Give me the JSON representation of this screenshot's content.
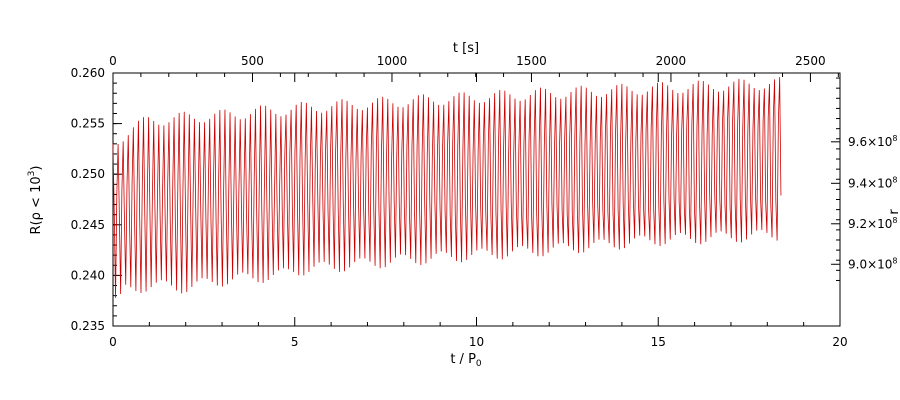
{
  "chart_data": {
    "type": "line",
    "title": "",
    "bottom_axis": {
      "label_main": "t / P",
      "label_sub": "0",
      "range": [
        0,
        20
      ],
      "ticks": [
        "0",
        "5",
        "10",
        "15",
        "20"
      ],
      "minor_step": 1
    },
    "top_axis": {
      "label": "t [s]",
      "range": [
        0,
        2606
      ],
      "ticks": [
        "0",
        "500",
        "1000",
        "1500",
        "2000",
        "2500"
      ],
      "tick_values": [
        0,
        500,
        1000,
        1500,
        2000,
        2500
      ],
      "minor_step": 100
    },
    "left_axis": {
      "label_prefix": "R(ρ < 10",
      "label_sup": "3",
      "label_suffix": ")",
      "range": [
        0.235,
        0.26
      ],
      "ticks": [
        "0.235",
        "0.240",
        "0.245",
        "0.250",
        "0.255",
        "0.260"
      ],
      "tick_values": [
        0.235,
        0.24,
        0.245,
        0.25,
        0.255,
        0.26
      ],
      "minor_step": 0.001
    },
    "right_axis": {
      "range_note": "scaled alongside left axis",
      "ticks": [
        "9.0×10",
        "9.2×10",
        "9.4×10",
        "9.6×10"
      ],
      "tick_exponent": "8",
      "tick_left_values": [
        0.2411,
        0.2451,
        0.2491,
        0.2532
      ],
      "partial_label": "r"
    },
    "series": [
      {
        "color": "#cc0000",
        "oscillation_period": 0.14,
        "x_end": 18.4,
        "upper_envelope": {
          "x": [
            0,
            0.5,
            1,
            2,
            3,
            4,
            4.6,
            5,
            8,
            12,
            15,
            18.4
          ],
          "y": [
            0.253,
            0.2545,
            0.2553,
            0.2556,
            0.2558,
            0.2562,
            0.2563,
            0.2565,
            0.2572,
            0.258,
            0.2585,
            0.259
          ]
        },
        "lower_envelope": {
          "x": [
            0,
            0.1,
            0.3,
            1,
            2,
            3,
            4.6,
            5,
            8,
            12,
            15,
            18.4
          ],
          "y": [
            0.24,
            0.2365,
            0.2385,
            0.239,
            0.2388,
            0.2395,
            0.24,
            0.2405,
            0.2415,
            0.2425,
            0.2435,
            0.244
          ]
        },
        "mid_upper_envelope": {
          "x": [
            0,
            2,
            4.6,
            4.7,
            8,
            12,
            15,
            18.4
          ],
          "y": [
            0.2485,
            0.2488,
            0.2492,
            0.2515,
            0.2522,
            0.253,
            0.254,
            0.2552
          ]
        },
        "mid_lower_envelope": {
          "x": [
            0,
            2,
            4.6,
            4.7,
            8,
            12,
            15,
            18.4
          ],
          "y": [
            0.2455,
            0.246,
            0.2462,
            0.247,
            0.2468,
            0.2465,
            0.247,
            0.2478
          ]
        }
      }
    ]
  }
}
